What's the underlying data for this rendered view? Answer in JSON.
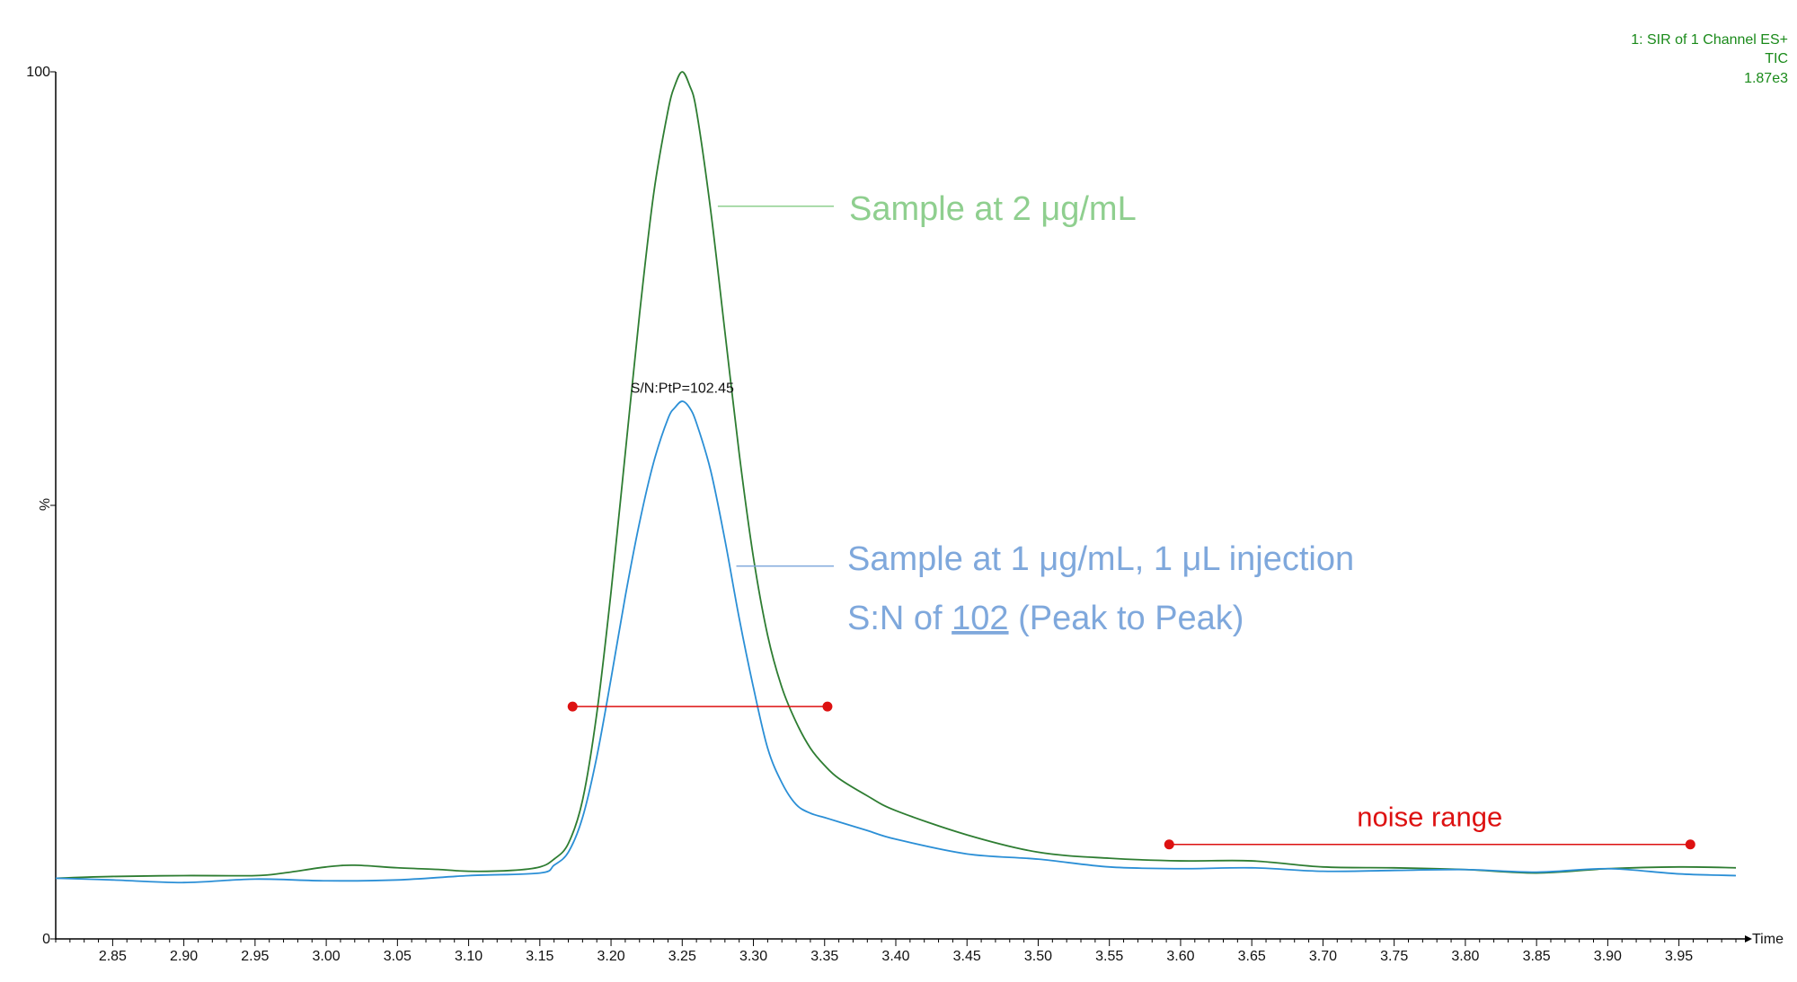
{
  "header": {
    "line1": "1: SIR of 1 Channel ES+",
    "line2": "TIC",
    "line3": "1.87e3",
    "color": "#1a8a1a"
  },
  "chart_data": {
    "type": "line",
    "xlabel": "Time",
    "ylabel": "%",
    "xlim": [
      2.81,
      3.99
    ],
    "ylim": [
      0,
      100
    ],
    "x_ticks": [
      "2.85",
      "2.90",
      "2.95",
      "3.00",
      "3.05",
      "3.10",
      "3.15",
      "3.20",
      "3.25",
      "3.30",
      "3.35",
      "3.40",
      "3.45",
      "3.50",
      "3.55",
      "3.60",
      "3.65",
      "3.70",
      "3.75",
      "3.80",
      "3.85",
      "3.90",
      "3.95"
    ],
    "y_ticks": [
      0,
      100
    ],
    "series": [
      {
        "color": "#2e7d32",
        "x": [
          2.81,
          2.85,
          2.9,
          2.95,
          2.97,
          3.0,
          3.02,
          3.05,
          3.08,
          3.1,
          3.13,
          3.15,
          3.16,
          3.17,
          3.18,
          3.19,
          3.2,
          3.21,
          3.22,
          3.23,
          3.24,
          3.245,
          3.25,
          3.255,
          3.26,
          3.27,
          3.28,
          3.29,
          3.3,
          3.31,
          3.32,
          3.33,
          3.34,
          3.35,
          3.36,
          3.38,
          3.4,
          3.45,
          3.5,
          3.55,
          3.6,
          3.65,
          3.7,
          3.75,
          3.8,
          3.85,
          3.9,
          3.95,
          3.99
        ],
        "values": [
          7.0,
          7.2,
          7.3,
          7.3,
          7.6,
          8.3,
          8.5,
          8.2,
          8.0,
          7.8,
          7.9,
          8.3,
          9.2,
          11.0,
          16.0,
          26.0,
          40.0,
          56.0,
          72.0,
          86.0,
          95.5,
          98.5,
          100.0,
          98.5,
          95.5,
          84.0,
          70.0,
          56.0,
          44.0,
          35.0,
          29.0,
          25.0,
          22.0,
          20.0,
          18.5,
          16.5,
          14.8,
          12.0,
          10.0,
          9.3,
          9.0,
          9.0,
          8.3,
          8.2,
          8.0,
          7.6,
          8.1,
          8.3,
          8.2
        ]
      },
      {
        "color": "#2b8fd6",
        "x": [
          2.81,
          2.85,
          2.9,
          2.95,
          3.0,
          3.05,
          3.1,
          3.15,
          3.16,
          3.17,
          3.18,
          3.19,
          3.2,
          3.21,
          3.22,
          3.23,
          3.24,
          3.245,
          3.25,
          3.255,
          3.26,
          3.27,
          3.28,
          3.29,
          3.3,
          3.31,
          3.32,
          3.33,
          3.34,
          3.35,
          3.36,
          3.38,
          3.4,
          3.45,
          3.5,
          3.55,
          3.6,
          3.65,
          3.7,
          3.75,
          3.8,
          3.85,
          3.9,
          3.95,
          3.99
        ],
        "values": [
          7.0,
          6.8,
          6.5,
          6.9,
          6.7,
          6.8,
          7.3,
          7.6,
          8.5,
          10.0,
          14.0,
          21.0,
          30.0,
          39.5,
          48.0,
          55.0,
          60.0,
          61.3,
          62.0,
          61.3,
          59.5,
          54.0,
          46.0,
          37.0,
          29.0,
          22.0,
          18.0,
          15.5,
          14.5,
          14.0,
          13.5,
          12.5,
          11.5,
          9.8,
          9.2,
          8.3,
          8.1,
          8.2,
          7.8,
          7.9,
          8.0,
          7.7,
          8.1,
          7.5,
          7.3
        ]
      }
    ],
    "annotations": {
      "green_label": "Sample at 2 μg/mL",
      "green_label_color": "#8fcf8f",
      "blue_label_line1": "Sample at 1 μg/mL, 1 μL injection",
      "blue_label_line2_prefix": "S:N of ",
      "blue_label_line2_value": "102",
      "blue_label_line2_suffix": " (Peak to Peak)",
      "blue_label_color": "#7fa8dc",
      "peak_label": "S/N:PtP=102.45",
      "peak_label_at": {
        "x": 3.25,
        "y": 63.0
      },
      "green_leader_from": {
        "x": 3.275,
        "y": 84.5
      },
      "blue_leader_from": {
        "x": 3.288,
        "y": 43.0
      },
      "signal_range": {
        "x1": 3.173,
        "x2": 3.352,
        "y": 26.8
      },
      "noise_range": {
        "x1": 3.592,
        "x2": 3.958,
        "y": 10.9
      },
      "noise_label": "noise range",
      "range_color": "#dd1111"
    }
  }
}
